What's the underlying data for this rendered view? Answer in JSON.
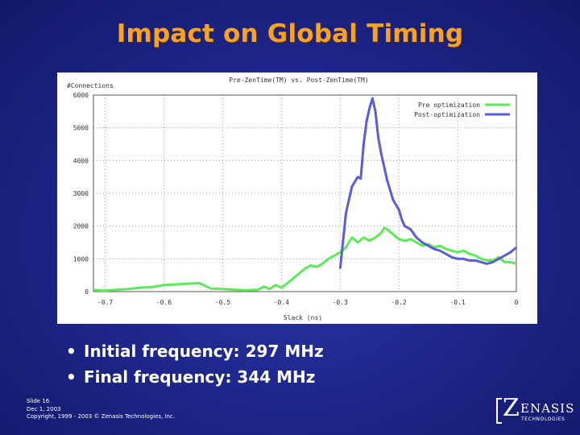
{
  "slide": {
    "title": "Impact on Global Timing",
    "bullets": [
      "Initial frequency: 297 MHz",
      "Final frequency: 344 MHz"
    ],
    "footer": [
      "Slide 16",
      "Dec 1, 2003",
      "Copyright, 1999 - 2003 © Zenasis Technologies, Inc."
    ],
    "logo": {
      "z": "Z",
      "rest": "ENASIS",
      "sub": "TECHNOLOGIES"
    }
  },
  "colors": {
    "pre": "#5ee85a",
    "post": "#5a5ed4",
    "grid": "#9a9a9a",
    "text": "#333333"
  },
  "chart_data": {
    "type": "line",
    "title": "Pre-ZenTime(TM) vs. Post-ZenTime(TM)",
    "ylabel": "#Connections",
    "xlabel": "Slack (ns)",
    "xlim": [
      -0.72,
      0.0
    ],
    "ylim": [
      0,
      6000
    ],
    "xticks": [
      -0.7,
      -0.6,
      -0.5,
      -0.4,
      -0.3,
      -0.2,
      -0.1,
      0
    ],
    "yticks": [
      0,
      1000,
      2000,
      3000,
      4000,
      5000,
      6000
    ],
    "legend_position": "top-right",
    "grid": true,
    "series": [
      {
        "name": "Pre optimization",
        "color": "#5ee85a",
        "points": [
          [
            -0.72,
            50
          ],
          [
            -0.7,
            30
          ],
          [
            -0.68,
            60
          ],
          [
            -0.66,
            80
          ],
          [
            -0.64,
            120
          ],
          [
            -0.62,
            140
          ],
          [
            -0.6,
            200
          ],
          [
            -0.58,
            220
          ],
          [
            -0.56,
            240
          ],
          [
            -0.54,
            260
          ],
          [
            -0.53,
            180
          ],
          [
            -0.52,
            90
          ],
          [
            -0.5,
            80
          ],
          [
            -0.48,
            60
          ],
          [
            -0.46,
            40
          ],
          [
            -0.44,
            60
          ],
          [
            -0.43,
            150
          ],
          [
            -0.42,
            80
          ],
          [
            -0.41,
            200
          ],
          [
            -0.4,
            120
          ],
          [
            -0.39,
            250
          ],
          [
            -0.38,
            400
          ],
          [
            -0.37,
            550
          ],
          [
            -0.36,
            700
          ],
          [
            -0.35,
            800
          ],
          [
            -0.34,
            750
          ],
          [
            -0.33,
            850
          ],
          [
            -0.32,
            1000
          ],
          [
            -0.31,
            1100
          ],
          [
            -0.3,
            1200
          ],
          [
            -0.29,
            1350
          ],
          [
            -0.28,
            1650
          ],
          [
            -0.27,
            1500
          ],
          [
            -0.26,
            1650
          ],
          [
            -0.25,
            1550
          ],
          [
            -0.24,
            1650
          ],
          [
            -0.23,
            1800
          ],
          [
            -0.225,
            1950
          ],
          [
            -0.22,
            1900
          ],
          [
            -0.21,
            1750
          ],
          [
            -0.2,
            1600
          ],
          [
            -0.19,
            1550
          ],
          [
            -0.18,
            1600
          ],
          [
            -0.17,
            1500
          ],
          [
            -0.16,
            1400
          ],
          [
            -0.15,
            1450
          ],
          [
            -0.14,
            1350
          ],
          [
            -0.13,
            1400
          ],
          [
            -0.12,
            1300
          ],
          [
            -0.11,
            1250
          ],
          [
            -0.1,
            1200
          ],
          [
            -0.09,
            1250
          ],
          [
            -0.08,
            1150
          ],
          [
            -0.07,
            1100
          ],
          [
            -0.06,
            1000
          ],
          [
            -0.05,
            950
          ],
          [
            -0.04,
            950
          ],
          [
            -0.03,
            1050
          ],
          [
            -0.02,
            900
          ],
          [
            -0.01,
            900
          ],
          [
            0.0,
            850
          ]
        ]
      },
      {
        "name": "Post-optimization",
        "color": "#5a5ed4",
        "points": [
          [
            -0.3,
            700
          ],
          [
            -0.29,
            2400
          ],
          [
            -0.28,
            3200
          ],
          [
            -0.27,
            3500
          ],
          [
            -0.265,
            3450
          ],
          [
            -0.26,
            4500
          ],
          [
            -0.255,
            5200
          ],
          [
            -0.25,
            5600
          ],
          [
            -0.245,
            5900
          ],
          [
            -0.24,
            5500
          ],
          [
            -0.235,
            4700
          ],
          [
            -0.23,
            4200
          ],
          [
            -0.22,
            3400
          ],
          [
            -0.21,
            2800
          ],
          [
            -0.2,
            2500
          ],
          [
            -0.195,
            2200
          ],
          [
            -0.19,
            2000
          ],
          [
            -0.18,
            1900
          ],
          [
            -0.17,
            1650
          ],
          [
            -0.16,
            1500
          ],
          [
            -0.15,
            1400
          ],
          [
            -0.14,
            1300
          ],
          [
            -0.13,
            1250
          ],
          [
            -0.12,
            1150
          ],
          [
            -0.11,
            1050
          ],
          [
            -0.1,
            1000
          ],
          [
            -0.09,
            1000
          ],
          [
            -0.08,
            950
          ],
          [
            -0.07,
            950
          ],
          [
            -0.06,
            900
          ],
          [
            -0.05,
            850
          ],
          [
            -0.04,
            900
          ],
          [
            -0.03,
            1000
          ],
          [
            -0.02,
            1100
          ],
          [
            -0.01,
            1200
          ],
          [
            0.0,
            1350
          ]
        ]
      }
    ]
  }
}
